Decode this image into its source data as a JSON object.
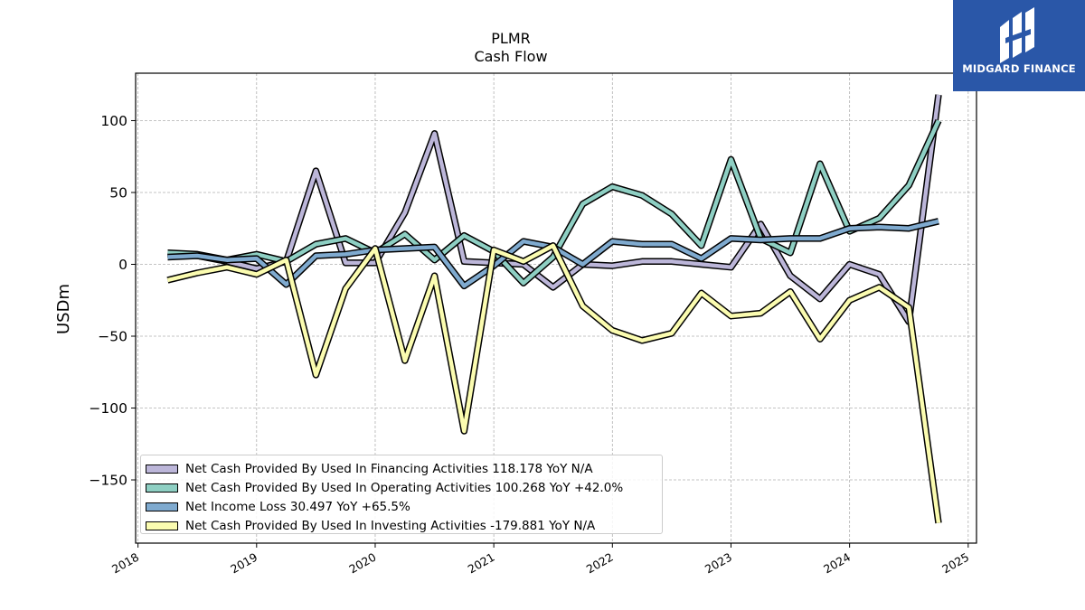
{
  "header": {
    "ticker": "PLMR",
    "subtitle": "Cash Flow"
  },
  "brand": {
    "name": "MIDGARD FINANCE",
    "color": "#2a57a8"
  },
  "chart_data": {
    "type": "line",
    "title": "PLMR",
    "subtitle": "Cash Flow",
    "xlabel": "",
    "ylabel": "USDm",
    "xlim": [
      2017.98,
      2025.07
    ],
    "ylim": [
      -194,
      133
    ],
    "xticks": [
      2018,
      2019,
      2020,
      2021,
      2022,
      2023,
      2024,
      2025
    ],
    "xtick_labels": [
      "2018",
      "2019",
      "2020",
      "2021",
      "2022",
      "2023",
      "2024",
      "2025"
    ],
    "yticks": [
      -150,
      -100,
      -50,
      0,
      50,
      100
    ],
    "ytick_labels": [
      "−150",
      "−100",
      "−50",
      "0",
      "50",
      "100"
    ],
    "grid": true,
    "legend_position": "lower-left",
    "x": [
      2018.25,
      2018.5,
      2018.75,
      2019.0,
      2019.25,
      2019.5,
      2019.75,
      2020.0,
      2020.25,
      2020.5,
      2020.75,
      2021.0,
      2021.25,
      2021.5,
      2021.75,
      2022.0,
      2022.25,
      2022.5,
      2022.75,
      2023.0,
      2023.25,
      2023.5,
      2023.75,
      2024.0,
      2024.25,
      2024.5,
      2024.75
    ],
    "series": [
      {
        "name": "Net Cash Provided By Used In Financing Activities",
        "legend_label": "Net Cash Provided By Used In Financing Activities  118.178 YoY N/A",
        "color": "#bcb6d9",
        "values": [
          7,
          6,
          2,
          -3,
          2,
          65,
          1,
          1,
          36,
          91,
          2,
          1,
          0,
          -16,
          0,
          -1,
          2,
          2,
          0,
          -2,
          28,
          -8,
          -24,
          0,
          -7,
          -40,
          118
        ]
      },
      {
        "name": "Net Cash Provided By Used In Operating Activities",
        "legend_label": "Net Cash Provided By Used In Operating Activities  100.268 YoY +42.0%",
        "color": "#8ecfc3",
        "values": [
          8,
          7,
          3,
          7,
          2,
          14,
          18,
          8,
          21,
          3,
          20,
          9,
          -13,
          5,
          42,
          54,
          48,
          35,
          13,
          73,
          18,
          8,
          70,
          23,
          32,
          55,
          100
        ]
      },
      {
        "name": "Net Income Loss",
        "legend_label": "Net Income Loss  30.497 YoY +65.5%",
        "color": "#7faacf",
        "values": [
          5,
          6,
          3,
          4,
          -14,
          6,
          7,
          10,
          11,
          12,
          -15,
          -1,
          16,
          12,
          0,
          16,
          14,
          14,
          4,
          18,
          17,
          18,
          18,
          25,
          26,
          25,
          30
        ]
      },
      {
        "name": "Net Cash Provided By Used In Investing Activities",
        "legend_label": "Net Cash Provided By Used In Investing Activities  -179.881 YoY N/A",
        "color": "#fbfcb0",
        "values": [
          -11,
          -6,
          -2,
          -7,
          3,
          -77,
          -17,
          11,
          -67,
          -8,
          -116,
          10,
          2,
          13,
          -29,
          -46,
          -53,
          -48,
          -20,
          -36,
          -34,
          -19,
          -52,
          -25,
          -16,
          -30,
          -180
        ]
      }
    ]
  }
}
